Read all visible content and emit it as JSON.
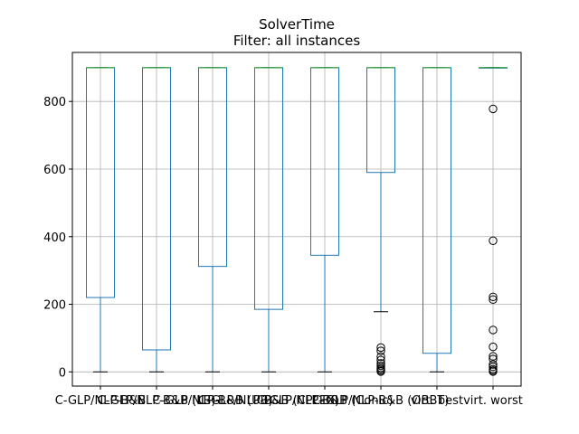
{
  "chart_data": {
    "type": "box",
    "title": "SolverTime",
    "subtitle": "Filter: all instances",
    "xlabel": "",
    "ylabel": "",
    "ylim": [
      -42,
      945
    ],
    "yticks": [
      0,
      200,
      400,
      600,
      800
    ],
    "grid": true,
    "legend": "none",
    "colors": {
      "box": "#1f77b4",
      "median": "#2ca02c",
      "whisker": "#1f77b4",
      "cap": "#000000",
      "grid": "#b0b0b0",
      "flier": "#000000"
    },
    "categories": [
      "C-GLP/NLP-B&B",
      "C-GLP/NLP-B&B (LB)",
      "C-GLP/NLP-B&B (UB)",
      "C-GLP/NLP-B&B (CPLEX)",
      "C-GLP/NLP-B&B (Conic)",
      "C-GLP/NLP-B&B (OBBT)",
      "virt. best",
      "virt. worst"
    ],
    "series": [
      {
        "label": "C-GLP/NLP-B&B",
        "min": 0,
        "q1": 220,
        "median": 900,
        "q3": 900,
        "max": 900,
        "outliers": []
      },
      {
        "label": "C-GLP/NLP-B&B (LB)",
        "min": 0,
        "q1": 65,
        "median": 900,
        "q3": 900,
        "max": 900,
        "outliers": []
      },
      {
        "label": "C-GLP/NLP-B&B (UB)",
        "min": 0,
        "q1": 312,
        "median": 900,
        "q3": 900,
        "max": 900,
        "outliers": []
      },
      {
        "label": "C-GLP/NLP-B&B (CPLEX)",
        "min": 0,
        "q1": 185,
        "median": 900,
        "q3": 900,
        "max": 900,
        "outliers": []
      },
      {
        "label": "C-GLP/NLP-B&B (Conic)",
        "min": 0,
        "q1": 345,
        "median": 900,
        "q3": 900,
        "max": 900,
        "outliers": []
      },
      {
        "label": "C-GLP/NLP-B&B (OBBT)",
        "min": 178,
        "q1": 590,
        "median": 900,
        "q3": 900,
        "max": 900,
        "outliers": [
          72,
          62,
          45,
          35,
          25,
          18,
          12,
          8,
          4,
          1
        ]
      },
      {
        "label": "virt. best",
        "min": 0,
        "q1": 55,
        "median": 900,
        "q3": 900,
        "max": 900,
        "outliers": []
      },
      {
        "label": "virt. worst",
        "min": 900,
        "q1": 900,
        "median": 900,
        "q3": 900,
        "max": 900,
        "outliers": [
          778,
          388,
          222,
          214,
          124,
          74,
          46,
          38,
          22,
          15,
          8,
          4,
          1
        ]
      }
    ]
  }
}
